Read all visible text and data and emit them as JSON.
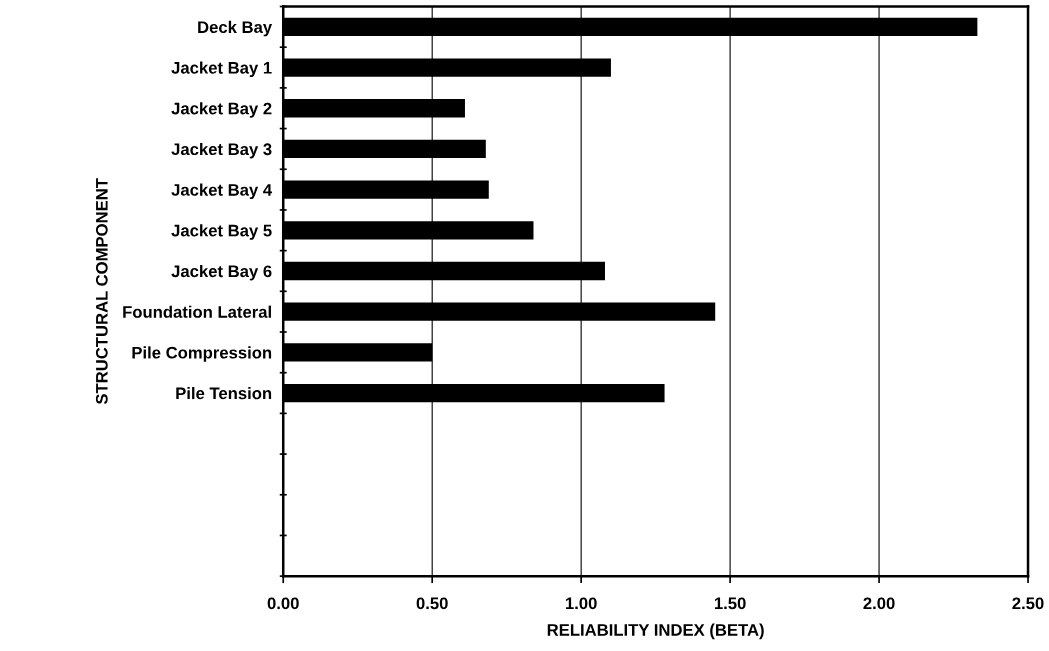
{
  "chart_data": {
    "type": "bar",
    "orientation": "horizontal",
    "categories": [
      "Deck Bay",
      "Jacket Bay 1",
      "Jacket Bay 2",
      "Jacket Bay 3",
      "Jacket Bay 4",
      "Jacket Bay 5",
      "Jacket Bay 6",
      "Foundation Lateral",
      "Pile Compression",
      "Pile Tension",
      null,
      null,
      null,
      null
    ],
    "values": [
      2.33,
      1.1,
      0.61,
      0.68,
      0.69,
      0.84,
      1.08,
      1.45,
      0.5,
      1.28,
      null,
      null,
      null,
      null
    ],
    "color": "#000000",
    "xlabel": "RELIABILITY INDEX (BETA)",
    "ylabel": "STRUCTURAL COMPONENT",
    "xlim": [
      0,
      2.5
    ],
    "xticks": [
      {
        "value": 0,
        "label": "0.00"
      },
      {
        "value": 0.5,
        "label": "0.50"
      },
      {
        "value": 1.0,
        "label": "1.00"
      },
      {
        "value": 1.5,
        "label": "1.50"
      },
      {
        "value": 2.0,
        "label": "2.00"
      },
      {
        "value": 2.5,
        "label": "2.50"
      }
    ],
    "grid": "x"
  }
}
